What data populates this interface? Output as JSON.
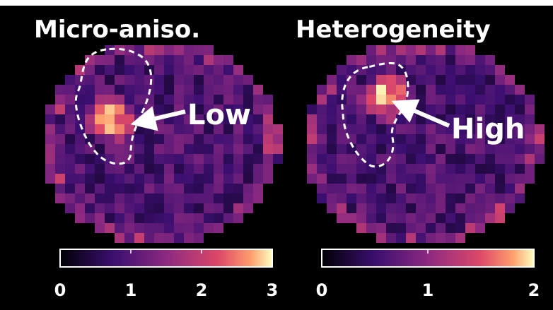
{
  "panels": [
    {
      "title": "Micro-aniso.",
      "annotation": "Low",
      "colorbar": {
        "lim": [
          0,
          3
        ],
        "ticks": [
          0,
          1,
          2,
          3
        ]
      }
    },
    {
      "title": "Heterogeneity",
      "annotation": "High",
      "colorbar": {
        "lim": [
          0,
          2
        ],
        "ticks": [
          0,
          1,
          2
        ]
      }
    }
  ]
}
